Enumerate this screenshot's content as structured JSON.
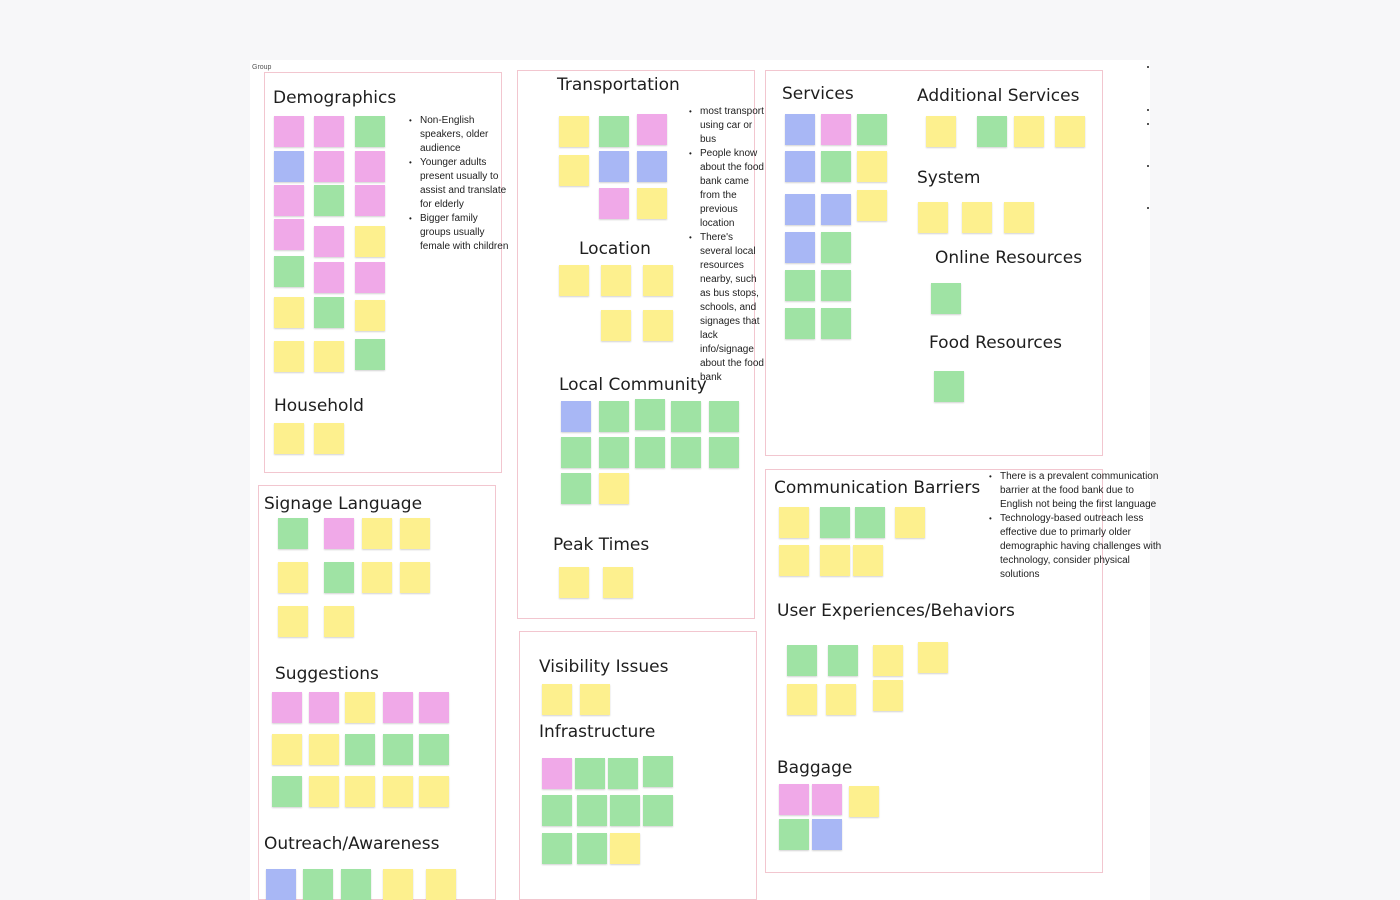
{
  "board": {
    "label": "Group"
  },
  "colors": {
    "yellow": "#fdf08e",
    "green": "#9fe3a4",
    "pink": "#f0a9e8",
    "blue": "#a8b7f5",
    "frame_border": "#f2c6cf"
  },
  "sections": {
    "demographics": {
      "title": "Demographics",
      "bullets": [
        "Non-English speakers, older audience",
        "Younger adults present usually to assist and translate for elderly",
        "Bigger family groups usually female with children"
      ]
    },
    "household": {
      "title": "Household"
    },
    "transportation": {
      "title": "Transportation",
      "bullets": [
        "most transport using car or bus",
        "People know about the food bank came from the previous location",
        "There's several local resources nearby, such as bus stops, schools, and signages that lack info/signage about the food bank"
      ]
    },
    "location": {
      "title": "Location"
    },
    "local_community": {
      "title": "Local Community"
    },
    "peak_times": {
      "title": "Peak Times"
    },
    "services": {
      "title": "Services"
    },
    "additional_services": {
      "title": "Additional Services"
    },
    "system": {
      "title": "System"
    },
    "online_resources": {
      "title": "Online Resources"
    },
    "food_resources": {
      "title": "Food Resources"
    },
    "signage_language": {
      "title": "Signage Language"
    },
    "suggestions": {
      "title": "Suggestions"
    },
    "outreach": {
      "title": "Outreach/Awareness"
    },
    "visibility": {
      "title": "Visibility Issues"
    },
    "infrastructure": {
      "title": "Infrastructure"
    },
    "communication": {
      "title": "Communication Barriers",
      "bullets": [
        "There is a prevalent communication barrier at the food bank due to English not being the first language",
        "Technology-based outreach less effective due to primarly older demographic having challenges with technology, consider physical solutions"
      ]
    },
    "user_experiences": {
      "title": "User Experiences/Behaviors"
    },
    "baggage": {
      "title": "Baggage"
    }
  }
}
